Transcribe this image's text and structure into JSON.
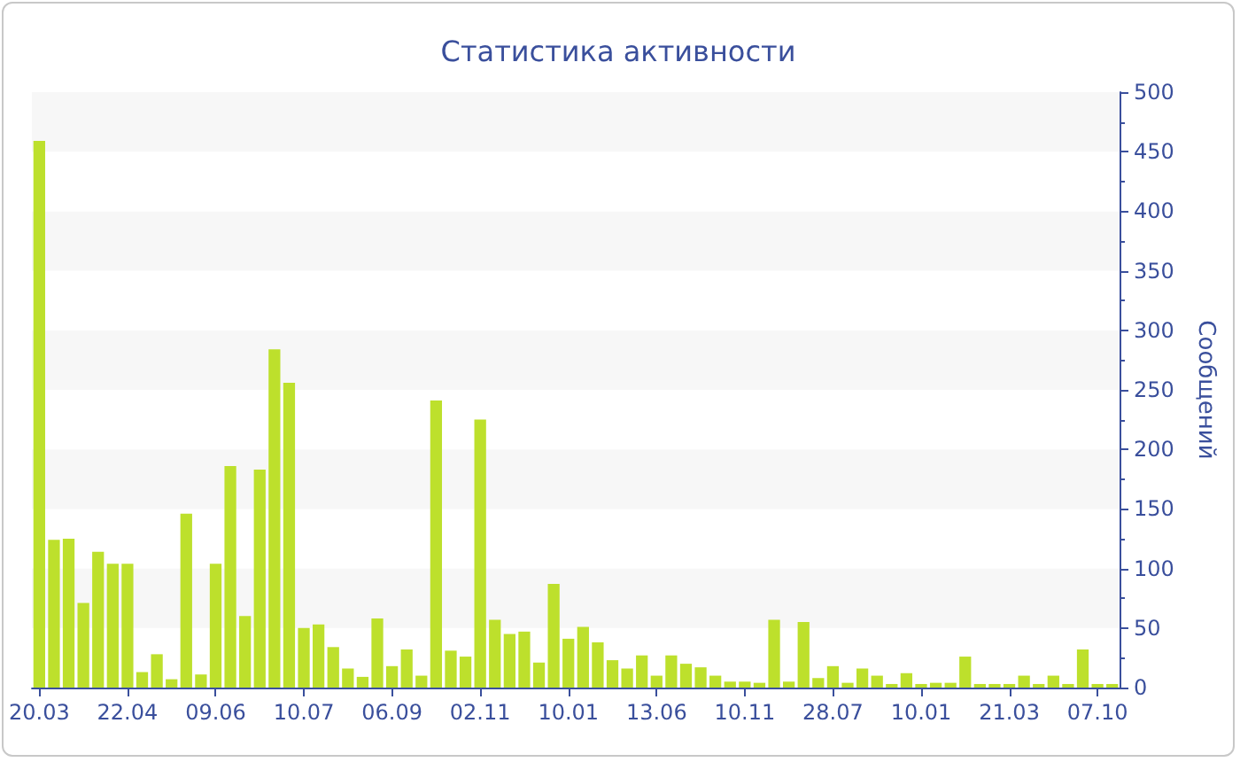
{
  "chart_data": {
    "type": "bar",
    "title": "Статистика активности",
    "ylabel": "Сообщений",
    "categories": [
      "20.03",
      null,
      null,
      null,
      null,
      null,
      "22.04",
      null,
      null,
      null,
      null,
      null,
      "09.06",
      null,
      null,
      null,
      null,
      null,
      "10.07",
      null,
      null,
      null,
      null,
      null,
      "06.09",
      null,
      null,
      null,
      null,
      null,
      "02.11",
      null,
      null,
      null,
      null,
      null,
      "10.01",
      null,
      null,
      null,
      null,
      null,
      "13.06",
      null,
      null,
      null,
      null,
      null,
      "10.11",
      null,
      null,
      null,
      null,
      null,
      "28.07",
      null,
      null,
      null,
      null,
      null,
      "10.01",
      null,
      null,
      null,
      null,
      null,
      "21.03",
      null,
      null,
      null,
      null,
      null,
      "07.10",
      null
    ],
    "values": [
      459,
      124,
      125,
      71,
      114,
      104,
      104,
      13,
      28,
      7,
      146,
      11,
      104,
      186,
      60,
      183,
      284,
      256,
      50,
      53,
      34,
      16,
      9,
      58,
      18,
      32,
      10,
      241,
      31,
      26,
      225,
      57,
      45,
      47,
      21,
      87,
      41,
      51,
      38,
      23,
      16,
      27,
      10,
      27,
      20,
      17,
      10,
      5,
      5,
      4,
      57,
      5,
      55,
      8,
      18,
      4,
      16,
      10,
      3,
      12,
      3,
      4,
      4,
      26,
      3,
      3,
      3,
      10,
      3,
      10,
      3,
      32,
      3,
      3
    ],
    "color": "#bde02c",
    "ylim": [
      0,
      500
    ],
    "yticks": [
      0,
      50,
      100,
      150,
      200,
      250,
      300,
      350,
      400,
      450,
      500
    ]
  }
}
